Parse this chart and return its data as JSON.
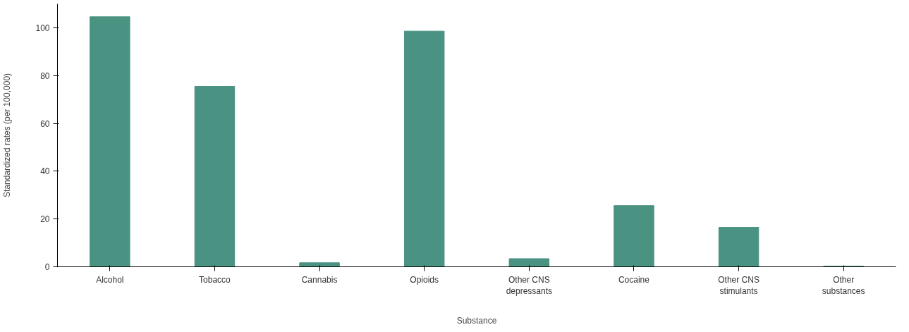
{
  "chart_data": {
    "type": "bar",
    "xlabel": "Substance",
    "ylabel": "Standardized rates (per 100,000)",
    "categories": [
      "Alcohol",
      "Tobacco",
      "Cannabis",
      "Opioids",
      "Other CNS\ndepressants",
      "Cocaine",
      "Other CNS\nstimulants",
      "Other\nsubstances"
    ],
    "values": [
      104.6,
      75.5,
      1.7,
      98.6,
      3.4,
      25.6,
      16.5,
      0.3
    ],
    "color": "#4a9282",
    "ylim": [
      0,
      110
    ],
    "yticks": [
      0,
      20,
      40,
      60,
      80,
      100
    ],
    "grid": false
  }
}
